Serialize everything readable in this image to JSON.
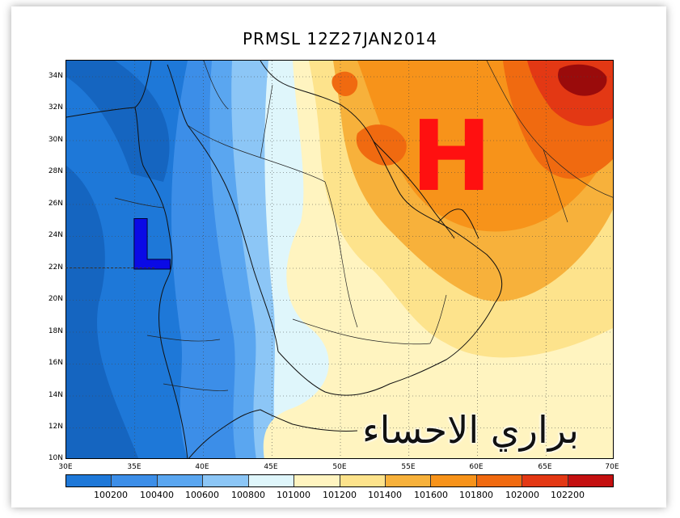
{
  "title": "PRMSL 12Z27JAN2014",
  "y_axis_labels": [
    "34N",
    "32N",
    "30N",
    "28N",
    "26N",
    "24N",
    "22N",
    "20N",
    "18N",
    "16N",
    "14N",
    "12N",
    "10N"
  ],
  "x_axis_labels": [
    "30E",
    "35E",
    "40E",
    "45E",
    "50E",
    "55E",
    "60E",
    "65E",
    "70E"
  ],
  "colorbar": {
    "colors": [
      "#1565c0",
      "#1e78d8",
      "#3c8ee8",
      "#5aa6f0",
      "#8cc6f6",
      "#dff6fb",
      "#fff4c0",
      "#fde38c",
      "#f7b13b",
      "#f7931a",
      "#f06a10",
      "#e33814",
      "#c41010",
      "#9a0b0b"
    ],
    "labels": [
      "100200",
      "100400",
      "100600",
      "100800",
      "101000",
      "101200",
      "101400",
      "101600",
      "101800",
      "102000",
      "102200"
    ]
  },
  "markers": {
    "low_label": "L",
    "low_color": "#0a0ae6",
    "high_label": "H",
    "high_color": "#ff1010"
  },
  "watermark": "براري الاحساء"
}
